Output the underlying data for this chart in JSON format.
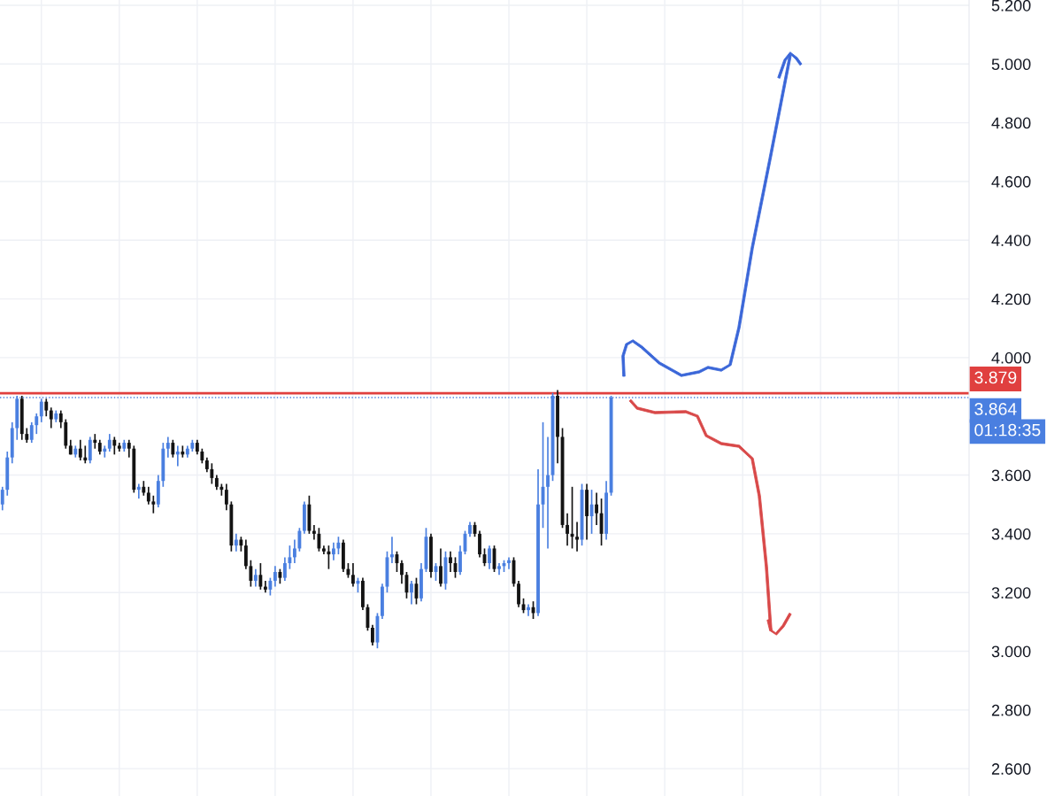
{
  "chart_data": {
    "type": "candlestick",
    "categories": [
      null,
      null,
      null,
      null,
      null,
      null,
      null,
      null,
      null,
      null,
      null,
      null,
      null,
      null,
      null,
      null,
      null,
      null,
      null,
      null,
      null,
      null,
      null,
      null,
      null,
      null,
      null,
      null,
      null,
      null,
      null,
      null,
      null,
      null,
      null,
      null,
      null,
      null,
      null,
      null,
      null,
      null,
      null,
      null,
      null,
      null,
      null,
      null,
      null,
      null,
      null,
      null,
      null,
      null,
      null,
      null,
      null,
      null,
      null,
      null,
      null,
      null,
      null,
      null,
      null,
      null,
      null,
      null,
      null,
      null,
      null,
      null,
      null,
      null,
      null,
      null,
      null,
      null,
      null,
      null,
      null,
      null,
      null,
      null,
      null,
      null,
      null,
      null,
      null,
      null,
      null,
      null,
      null,
      null,
      null,
      null,
      null,
      null,
      null,
      null,
      null,
      null,
      null,
      null,
      null,
      null,
      null,
      null,
      null,
      null,
      null,
      null,
      null,
      null,
      null,
      null,
      null,
      null,
      null,
      null,
      null,
      null,
      null,
      null,
      null,
      null,
      null,
      null,
      null,
      null,
      null,
      null,
      null,
      null,
      null,
      null,
      null,
      null,
      null,
      null,
      null,
      null,
      null,
      null,
      null,
      null,
      null,
      null,
      null,
      null,
      null,
      null,
      null,
      null,
      null,
      null,
      null,
      null,
      null,
      null,
      null,
      null,
      null,
      null,
      null,
      null,
      null,
      null,
      null,
      null,
      null,
      null,
      null,
      null,
      null,
      null,
      null,
      null,
      null,
      null,
      null,
      null,
      null,
      null,
      null,
      null,
      null,
      null,
      null,
      null,
      null,
      null,
      null,
      null,
      null,
      null,
      null,
      null,
      null
    ],
    "ohlc": [
      [
        3.5,
        3.56,
        3.48,
        3.55
      ],
      [
        3.55,
        3.68,
        3.53,
        3.66
      ],
      [
        3.66,
        3.78,
        3.64,
        3.76
      ],
      [
        3.76,
        3.87,
        3.72,
        3.86
      ],
      [
        3.86,
        3.87,
        3.72,
        3.74
      ],
      [
        3.74,
        3.76,
        3.71,
        3.72
      ],
      [
        3.72,
        3.78,
        3.71,
        3.77
      ],
      [
        3.77,
        3.81,
        3.74,
        3.8
      ],
      [
        3.8,
        3.86,
        3.78,
        3.85
      ],
      [
        3.85,
        3.86,
        3.8,
        3.82
      ],
      [
        3.82,
        3.83,
        3.76,
        3.79
      ],
      [
        3.79,
        3.82,
        3.78,
        3.81
      ],
      [
        3.81,
        3.82,
        3.76,
        3.78
      ],
      [
        3.78,
        3.79,
        3.69,
        3.7
      ],
      [
        3.7,
        3.72,
        3.67,
        3.67
      ],
      [
        3.67,
        3.7,
        3.66,
        3.69
      ],
      [
        3.69,
        3.72,
        3.65,
        3.66
      ],
      [
        3.66,
        3.7,
        3.64,
        3.65
      ],
      [
        3.65,
        3.73,
        3.64,
        3.72
      ],
      [
        3.72,
        3.74,
        3.69,
        3.71
      ],
      [
        3.71,
        3.72,
        3.67,
        3.68
      ],
      [
        3.68,
        3.7,
        3.66,
        3.69
      ],
      [
        3.69,
        3.74,
        3.68,
        3.72
      ],
      [
        3.72,
        3.73,
        3.67,
        3.7
      ],
      [
        3.7,
        3.71,
        3.68,
        3.69
      ],
      [
        3.69,
        3.72,
        3.68,
        3.71
      ],
      [
        3.71,
        3.72,
        3.66,
        3.69
      ],
      [
        3.69,
        3.7,
        3.54,
        3.55
      ],
      [
        3.55,
        3.57,
        3.52,
        3.56
      ],
      [
        3.56,
        3.58,
        3.53,
        3.54
      ],
      [
        3.54,
        3.56,
        3.5,
        3.51
      ],
      [
        3.51,
        3.53,
        3.47,
        3.5
      ],
      [
        3.5,
        3.6,
        3.49,
        3.58
      ],
      [
        3.58,
        3.71,
        3.56,
        3.69
      ],
      [
        3.69,
        3.73,
        3.66,
        3.71
      ],
      [
        3.71,
        3.72,
        3.66,
        3.67
      ],
      [
        3.67,
        3.7,
        3.63,
        3.68
      ],
      [
        3.68,
        3.7,
        3.66,
        3.67
      ],
      [
        3.67,
        3.7,
        3.66,
        3.69
      ],
      [
        3.69,
        3.72,
        3.68,
        3.71
      ],
      [
        3.71,
        3.72,
        3.67,
        3.68
      ],
      [
        3.68,
        3.69,
        3.64,
        3.65
      ],
      [
        3.65,
        3.66,
        3.61,
        3.62
      ],
      [
        3.62,
        3.64,
        3.57,
        3.59
      ],
      [
        3.59,
        3.6,
        3.55,
        3.56
      ],
      [
        3.56,
        3.57,
        3.53,
        3.55
      ],
      [
        3.55,
        3.57,
        3.48,
        3.5
      ],
      [
        3.5,
        3.51,
        3.34,
        3.36
      ],
      [
        3.36,
        3.4,
        3.34,
        3.38
      ],
      [
        3.38,
        3.39,
        3.34,
        3.36
      ],
      [
        3.36,
        3.38,
        3.28,
        3.29
      ],
      [
        3.29,
        3.31,
        3.22,
        3.24
      ],
      [
        3.24,
        3.28,
        3.22,
        3.26
      ],
      [
        3.26,
        3.3,
        3.21,
        3.22
      ],
      [
        3.22,
        3.24,
        3.2,
        3.21
      ],
      [
        3.21,
        3.25,
        3.19,
        3.24
      ],
      [
        3.24,
        3.29,
        3.22,
        3.27
      ],
      [
        3.27,
        3.28,
        3.23,
        3.25
      ],
      [
        3.25,
        3.32,
        3.24,
        3.3
      ],
      [
        3.3,
        3.36,
        3.28,
        3.32
      ],
      [
        3.32,
        3.38,
        3.3,
        3.35
      ],
      [
        3.35,
        3.42,
        3.34,
        3.41
      ],
      [
        3.41,
        3.51,
        3.4,
        3.5
      ],
      [
        3.5,
        3.53,
        3.4,
        3.41
      ],
      [
        3.41,
        3.43,
        3.38,
        3.4
      ],
      [
        3.4,
        3.42,
        3.34,
        3.35
      ],
      [
        3.35,
        3.36,
        3.33,
        3.34
      ],
      [
        3.34,
        3.36,
        3.28,
        3.33
      ],
      [
        3.33,
        3.37,
        3.31,
        3.35
      ],
      [
        3.35,
        3.39,
        3.33,
        3.37
      ],
      [
        3.37,
        3.38,
        3.27,
        3.28
      ],
      [
        3.28,
        3.3,
        3.25,
        3.26
      ],
      [
        3.26,
        3.3,
        3.22,
        3.23
      ],
      [
        3.23,
        3.25,
        3.2,
        3.24
      ],
      [
        3.24,
        3.25,
        3.14,
        3.15
      ],
      [
        3.15,
        3.16,
        3.07,
        3.08
      ],
      [
        3.08,
        3.09,
        3.02,
        3.03
      ],
      [
        3.03,
        3.13,
        3.01,
        3.12
      ],
      [
        3.12,
        3.23,
        3.11,
        3.22
      ],
      [
        3.22,
        3.34,
        3.2,
        3.32
      ],
      [
        3.32,
        3.39,
        3.3,
        3.33
      ],
      [
        3.33,
        3.34,
        3.27,
        3.3
      ],
      [
        3.3,
        3.31,
        3.23,
        3.26
      ],
      [
        3.26,
        3.27,
        3.18,
        3.2
      ],
      [
        3.2,
        3.24,
        3.16,
        3.23
      ],
      [
        3.23,
        3.25,
        3.16,
        3.18
      ],
      [
        3.18,
        3.3,
        3.17,
        3.28
      ],
      [
        3.28,
        3.42,
        3.27,
        3.39
      ],
      [
        3.39,
        3.4,
        3.25,
        3.27
      ],
      [
        3.27,
        3.3,
        3.24,
        3.29
      ],
      [
        3.29,
        3.35,
        3.22,
        3.23
      ],
      [
        3.23,
        3.34,
        3.21,
        3.32
      ],
      [
        3.32,
        3.34,
        3.27,
        3.3
      ],
      [
        3.3,
        3.32,
        3.25,
        3.27
      ],
      [
        3.27,
        3.36,
        3.26,
        3.34
      ],
      [
        3.34,
        3.41,
        3.33,
        3.4
      ],
      [
        3.4,
        3.44,
        3.39,
        3.43
      ],
      [
        3.43,
        3.44,
        3.39,
        3.4
      ],
      [
        3.4,
        3.41,
        3.32,
        3.33
      ],
      [
        3.33,
        3.35,
        3.29,
        3.3
      ],
      [
        3.3,
        3.36,
        3.28,
        3.35
      ],
      [
        3.35,
        3.36,
        3.27,
        3.28
      ],
      [
        3.28,
        3.3,
        3.26,
        3.29
      ],
      [
        3.29,
        3.31,
        3.27,
        3.3
      ],
      [
        3.3,
        3.32,
        3.28,
        3.31
      ],
      [
        3.31,
        3.32,
        3.22,
        3.23
      ],
      [
        3.23,
        3.24,
        3.15,
        3.16
      ],
      [
        3.16,
        3.18,
        3.13,
        3.14
      ],
      [
        3.14,
        3.16,
        3.12,
        3.15
      ],
      [
        3.15,
        3.17,
        3.11,
        3.13
      ],
      [
        3.13,
        3.62,
        3.12,
        3.5
      ],
      [
        3.5,
        3.78,
        3.42,
        3.56
      ],
      [
        3.56,
        3.73,
        3.35,
        3.6
      ],
      [
        3.6,
        3.88,
        3.58,
        3.87
      ],
      [
        3.87,
        3.89,
        3.64,
        3.73
      ],
      [
        3.73,
        3.76,
        3.42,
        3.43
      ],
      [
        3.43,
        3.47,
        3.36,
        3.4
      ],
      [
        3.4,
        3.56,
        3.35,
        3.39
      ],
      [
        3.39,
        3.44,
        3.34,
        3.38
      ],
      [
        3.38,
        3.57,
        3.36,
        3.55
      ],
      [
        3.55,
        3.57,
        3.38,
        3.46
      ],
      [
        3.46,
        3.55,
        3.4,
        3.5
      ],
      [
        3.5,
        3.54,
        3.43,
        3.47
      ],
      [
        3.47,
        3.52,
        3.36,
        3.4
      ],
      [
        3.4,
        3.58,
        3.38,
        3.54
      ],
      [
        3.54,
        3.87,
        3.53,
        3.864
      ],
      null,
      null,
      null,
      null,
      null,
      null,
      null,
      null,
      null,
      null,
      null,
      null,
      null,
      null,
      null,
      null,
      null,
      null,
      null,
      null,
      null,
      null,
      null,
      null,
      null,
      null,
      null,
      null,
      null,
      null,
      null,
      null,
      null,
      null,
      null,
      null,
      null,
      null,
      null,
      null,
      null,
      null,
      null,
      null,
      null,
      null,
      null,
      null,
      null,
      null,
      null,
      null,
      null,
      null,
      null,
      null,
      null,
      null,
      null,
      null,
      null,
      null,
      null,
      null,
      null,
      null,
      null,
      null,
      null,
      null,
      null,
      null,
      null
    ],
    "colors": [
      "#4a7fe0",
      "#4a7fe0",
      "#4a7fe0",
      "#4a7fe0",
      "#131313",
      "#131313",
      "#4a7fe0",
      "#4a7fe0",
      "#4a7fe0",
      "#131313",
      "#131313",
      "#4a7fe0",
      "#131313",
      "#131313",
      "#131313",
      "#4a7fe0",
      "#131313",
      "#131313",
      "#4a7fe0",
      "#131313",
      "#131313",
      "#4a7fe0",
      "#4a7fe0",
      "#131313",
      "#131313",
      "#4a7fe0",
      "#131313",
      "#131313",
      "#4a7fe0",
      "#131313",
      "#131313",
      "#131313",
      "#4a7fe0",
      "#4a7fe0",
      "#4a7fe0",
      "#131313",
      "#4a7fe0",
      "#131313",
      "#4a7fe0",
      "#4a7fe0",
      "#131313",
      "#131313",
      "#131313",
      "#131313",
      "#131313",
      "#131313",
      "#131313",
      "#131313",
      "#4a7fe0",
      "#131313",
      "#131313",
      "#131313",
      "#4a7fe0",
      "#131313",
      "#131313",
      "#4a7fe0",
      "#4a7fe0",
      "#131313",
      "#4a7fe0",
      "#4a7fe0",
      "#4a7fe0",
      "#4a7fe0",
      "#4a7fe0",
      "#131313",
      "#131313",
      "#131313",
      "#131313",
      "#131313",
      "#4a7fe0",
      "#4a7fe0",
      "#131313",
      "#131313",
      "#131313",
      "#4a7fe0",
      "#131313",
      "#131313",
      "#131313",
      "#4a7fe0",
      "#4a7fe0",
      "#4a7fe0",
      "#4a7fe0",
      "#131313",
      "#131313",
      "#131313",
      "#4a7fe0",
      "#131313",
      "#4a7fe0",
      "#4a7fe0",
      "#131313",
      "#4a7fe0",
      "#131313",
      "#4a7fe0",
      "#131313",
      "#131313",
      "#4a7fe0",
      "#4a7fe0",
      "#4a7fe0",
      "#131313",
      "#131313",
      "#131313",
      "#4a7fe0",
      "#131313",
      "#4a7fe0",
      "#4a7fe0",
      "#4a7fe0",
      "#131313",
      "#131313",
      "#131313",
      "#4a7fe0",
      "#131313",
      "#4a7fe0",
      "#4a7fe0",
      "#4a7fe0",
      "#4a7fe0",
      "#131313",
      "#131313",
      "#131313",
      "#131313",
      "#131313",
      "#4a7fe0",
      "#131313",
      "#4a7fe0",
      "#131313",
      "#131313",
      "#4a7fe0",
      "#4a7fe0",
      null,
      null,
      null,
      null,
      null,
      null,
      null,
      null,
      null,
      null,
      null,
      null,
      null,
      null,
      null,
      null,
      null,
      null,
      null,
      null,
      null,
      null,
      null,
      null,
      null,
      null,
      null,
      null,
      null,
      null,
      null,
      null,
      null,
      null,
      null,
      null,
      null,
      null,
      null,
      null,
      null,
      null,
      null,
      null,
      null,
      null,
      null,
      null,
      null,
      null,
      null,
      null,
      null,
      null,
      null,
      null,
      null,
      null,
      null,
      null,
      null,
      null,
      null,
      null,
      null,
      null,
      null,
      null,
      null,
      null,
      null,
      null,
      null
    ],
    "ylim": [
      2.507,
      5.218
    ],
    "yticks": [
      {
        "value": 2.6,
        "label": "2.600"
      },
      {
        "value": 2.8,
        "label": "2.800"
      },
      {
        "value": 3.0,
        "label": "3.000"
      },
      {
        "value": 3.2,
        "label": "3.200"
      },
      {
        "value": 3.4,
        "label": "3.400"
      },
      {
        "value": 3.6,
        "label": "3.600"
      },
      {
        "value": 4.0,
        "label": "4.000"
      },
      {
        "value": 4.2,
        "label": "4.200"
      },
      {
        "value": 4.4,
        "label": "4.400"
      },
      {
        "value": 4.6,
        "label": "4.600"
      },
      {
        "value": 4.8,
        "label": "4.800"
      },
      {
        "value": 5.0,
        "label": "5.000"
      },
      {
        "value": 5.2,
        "label": "5.200"
      }
    ],
    "tick_labels": "y",
    "grid": true,
    "ref_lines": [
      {
        "axis": "y",
        "value": 3.879,
        "label": "3.879",
        "color": "#e0403f",
        "line_style": "solid"
      },
      {
        "axis": "y",
        "value": 3.864,
        "label": "3.864",
        "color": "#4a7fe0",
        "line_style": "dotted"
      }
    ],
    "annotations": [
      "01:18:35"
    ]
  }
}
